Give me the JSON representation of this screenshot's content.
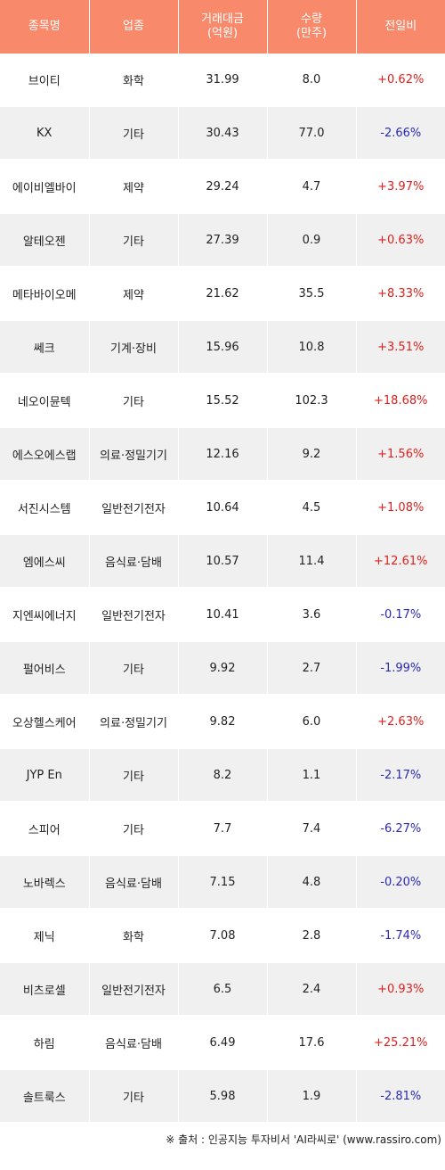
{
  "headers": [
    "종목명",
    "업종",
    "거래대금\n(억원)",
    "수량\n(만주)",
    "전일비"
  ],
  "rows": [
    {
      "name": "브이티",
      "sector": "화학",
      "amount": "31.99",
      "qty": "8.0",
      "change": "+0.62%"
    },
    {
      "name": "KX",
      "sector": "기타",
      "amount": "30.43",
      "qty": "77.0",
      "change": "-2.66%"
    },
    {
      "name": "에이비엘바이",
      "sector": "제약",
      "amount": "29.24",
      "qty": "4.7",
      "change": "+3.97%"
    },
    {
      "name": "알테오젠",
      "sector": "기타",
      "amount": "27.39",
      "qty": "0.9",
      "change": "+0.63%"
    },
    {
      "name": "메타바이오메",
      "sector": "제약",
      "amount": "21.62",
      "qty": "35.5",
      "change": "+8.33%"
    },
    {
      "name": "쎄크",
      "sector": "기계·장비",
      "amount": "15.96",
      "qty": "10.8",
      "change": "+3.51%"
    },
    {
      "name": "네오이뮨텍",
      "sector": "기타",
      "amount": "15.52",
      "qty": "102.3",
      "change": "+18.68%"
    },
    {
      "name": "에스오에스랩",
      "sector": "의료·정밀기기",
      "amount": "12.16",
      "qty": "9.2",
      "change": "+1.56%"
    },
    {
      "name": "서진시스템",
      "sector": "일반전기전자",
      "amount": "10.64",
      "qty": "4.5",
      "change": "+1.08%"
    },
    {
      "name": "엠에스씨",
      "sector": "음식료·담배",
      "amount": "10.57",
      "qty": "11.4",
      "change": "+12.61%"
    },
    {
      "name": "지엔씨에너지",
      "sector": "일반전기전자",
      "amount": "10.41",
      "qty": "3.6",
      "change": "-0.17%"
    },
    {
      "name": "펄어비스",
      "sector": "기타",
      "amount": "9.92",
      "qty": "2.7",
      "change": "-1.99%"
    },
    {
      "name": "오상헬스케어",
      "sector": "의료·정밀기기",
      "amount": "9.82",
      "qty": "6.0",
      "change": "+2.63%"
    },
    {
      "name": "JYP En",
      "sector": "기타",
      "amount": "8.2",
      "qty": "1.1",
      "change": "-2.17%"
    },
    {
      "name": "스피어",
      "sector": "기타",
      "amount": "7.7",
      "qty": "7.4",
      "change": "-6.27%"
    },
    {
      "name": "노바렉스",
      "sector": "음식료·담배",
      "amount": "7.15",
      "qty": "4.8",
      "change": "-0.20%"
    },
    {
      "name": "제닉",
      "sector": "화학",
      "amount": "7.08",
      "qty": "2.8",
      "change": "-1.74%"
    },
    {
      "name": "비츠로셀",
      "sector": "일반전기전자",
      "amount": "6.5",
      "qty": "2.4",
      "change": "+0.93%"
    },
    {
      "name": "하림",
      "sector": "음식료·담배",
      "amount": "6.49",
      "qty": "17.6",
      "change": "+25.21%"
    },
    {
      "name": "솔트룩스",
      "sector": "기타",
      "amount": "5.98",
      "qty": "1.9",
      "change": "-2.81%"
    }
  ],
  "source": "※ 출처 : 인공지능 투자비서 'AI라씨로' (www.rassiro.com)",
  "colors": {
    "header_bg": "#f9896b",
    "up": "#e0201c",
    "down": "#2a2ab6",
    "stripe": "#f0f0f0"
  }
}
